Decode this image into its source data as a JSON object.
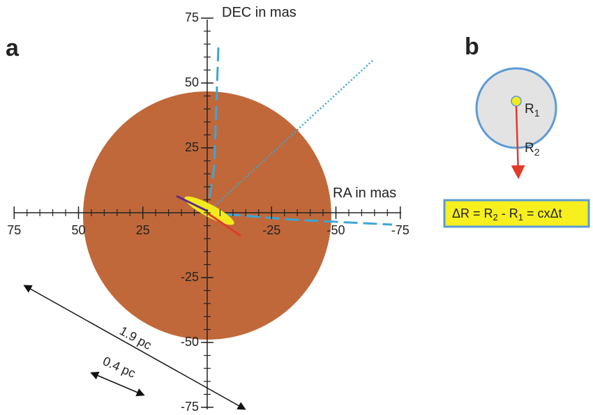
{
  "panel_a": {
    "label": "a",
    "y_axis_label": "DEC in mas",
    "x_axis_label": "RA in mas",
    "xticks": [
      75,
      50,
      25,
      -25,
      -50,
      -75
    ],
    "yticks": [
      75,
      50,
      25,
      -25,
      -50,
      -75
    ],
    "scale_bars": [
      {
        "label": "1.9 pc"
      },
      {
        "label": "0.4 pc"
      }
    ]
  },
  "panel_b": {
    "label": "b",
    "r1_label": [
      "R",
      "1"
    ],
    "r2_label": [
      "R",
      "2"
    ],
    "formula": [
      "ΔR = R",
      "2",
      " - R",
      "1",
      " = cxΔt"
    ]
  }
}
